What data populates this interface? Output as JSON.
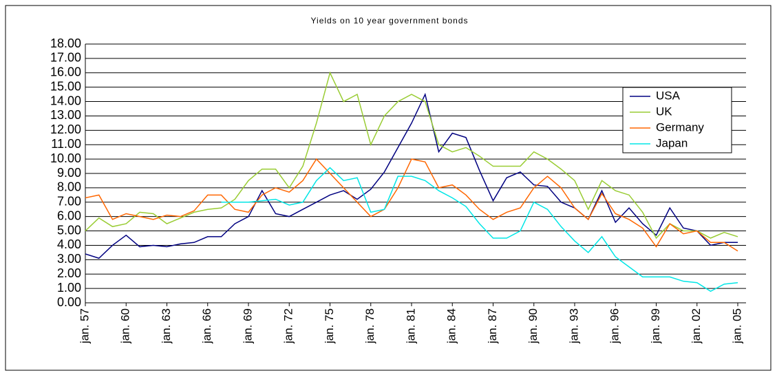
{
  "chart_data": {
    "type": "line",
    "title": "Yields on 10 year government bonds",
    "categories": [
      "jan. 57",
      null,
      null,
      "jan. 60",
      null,
      null,
      "jan. 63",
      null,
      null,
      "jan. 66",
      null,
      null,
      "jan. 69",
      null,
      null,
      "jan. 72",
      null,
      null,
      "jan. 75",
      null,
      null,
      "jan. 78",
      null,
      null,
      "jan. 81",
      null,
      null,
      "jan. 84",
      null,
      null,
      "jan. 87",
      null,
      null,
      "jan. 90",
      null,
      null,
      "jan. 93",
      null,
      null,
      "jan. 96",
      null,
      null,
      "jan. 99",
      null,
      null,
      "jan. 02",
      null,
      null,
      "jan. 05"
    ],
    "series": [
      {
        "name": "USA",
        "color": "#000080",
        "values": [
          3.4,
          3.1,
          4.0,
          4.7,
          3.9,
          4.0,
          3.9,
          4.1,
          4.2,
          4.6,
          4.6,
          5.5,
          6.0,
          7.8,
          6.2,
          6.0,
          6.5,
          7.0,
          7.5,
          7.8,
          7.2,
          7.9,
          9.1,
          10.8,
          12.5,
          14.5,
          10.5,
          11.8,
          11.5,
          9.2,
          7.1,
          8.7,
          9.1,
          8.2,
          8.1,
          7.0,
          6.6,
          5.8,
          7.8,
          5.6,
          6.6,
          5.5,
          4.7,
          6.6,
          5.2,
          5.0,
          4.0,
          4.2,
          4.2
        ]
      },
      {
        "name": "UK",
        "color": "#99cc33",
        "values": [
          5.0,
          5.9,
          5.3,
          5.5,
          6.3,
          6.2,
          5.5,
          5.9,
          6.3,
          6.5,
          6.6,
          7.2,
          8.5,
          9.3,
          9.3,
          8.0,
          9.5,
          12.5,
          16.0,
          14.0,
          14.5,
          11.0,
          13.0,
          14.0,
          14.5,
          14.0,
          11.0,
          10.5,
          10.8,
          10.2,
          9.5,
          9.5,
          9.5,
          10.5,
          10.0,
          9.3,
          8.5,
          6.5,
          8.5,
          7.8,
          7.5,
          6.3,
          4.5,
          5.5,
          5.0,
          5.0,
          4.5,
          4.9,
          4.6
        ]
      },
      {
        "name": "Germany",
        "color": "#ff6600",
        "values": [
          7.3,
          7.5,
          5.8,
          6.2,
          6.0,
          5.8,
          6.1,
          6.0,
          6.4,
          7.5,
          7.5,
          6.5,
          6.3,
          7.5,
          8.0,
          7.7,
          8.5,
          10.0,
          9.0,
          8.0,
          7.0,
          6.0,
          6.5,
          8.0,
          10.0,
          9.8,
          8.0,
          8.2,
          7.5,
          6.5,
          5.8,
          6.3,
          6.6,
          8.0,
          8.8,
          8.0,
          6.6,
          5.8,
          7.6,
          6.2,
          5.8,
          5.2,
          3.9,
          5.5,
          4.8,
          5.0,
          4.2,
          4.2,
          3.6
        ]
      },
      {
        "name": "Japan",
        "color": "#00e6e6",
        "values": [
          null,
          null,
          null,
          null,
          null,
          null,
          null,
          null,
          null,
          null,
          7.0,
          7.0,
          7.0,
          7.1,
          7.2,
          6.8,
          7.0,
          8.5,
          9.4,
          8.5,
          8.7,
          6.3,
          6.5,
          8.8,
          8.8,
          8.5,
          7.8,
          7.3,
          6.7,
          5.5,
          4.5,
          4.5,
          5.0,
          7.0,
          6.5,
          5.3,
          4.3,
          3.5,
          4.6,
          3.2,
          2.5,
          1.8,
          1.8,
          1.8,
          1.5,
          1.4,
          0.8,
          1.3,
          1.4
        ]
      }
    ],
    "ylim": [
      0,
      18
    ],
    "yticks": [
      {
        "value": 0,
        "label": "0.00"
      },
      {
        "value": 1,
        "label": "1.00"
      },
      {
        "value": 2,
        "label": "2.00"
      },
      {
        "value": 3,
        "label": "3.00"
      },
      {
        "value": 4,
        "label": "4.00"
      },
      {
        "value": 5,
        "label": "5.00"
      },
      {
        "value": 6,
        "label": "6.00"
      },
      {
        "value": 7,
        "label": "7.00"
      },
      {
        "value": 8,
        "label": "8.00"
      },
      {
        "value": 9,
        "label": "9.00"
      },
      {
        "value": 10,
        "label": "10.00"
      },
      {
        "value": 11,
        "label": "11.00"
      },
      {
        "value": 12,
        "label": "12.00"
      },
      {
        "value": 13,
        "label": "13.00"
      },
      {
        "value": 14,
        "label": "14.00"
      },
      {
        "value": 15,
        "label": "15.00"
      },
      {
        "value": 16,
        "label": "16.00"
      },
      {
        "value": 17,
        "label": "17.00"
      },
      {
        "value": 18,
        "label": "18.00"
      }
    ],
    "grid": true,
    "legend": "upper-right"
  }
}
